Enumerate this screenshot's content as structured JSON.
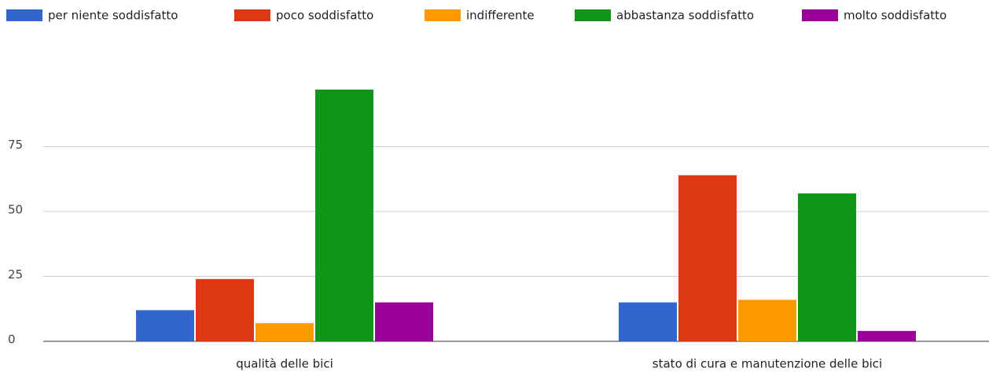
{
  "chart_data": {
    "type": "bar",
    "categories": [
      "qualità delle bici",
      "stato di cura e manutenzione delle bici"
    ],
    "series": [
      {
        "name": "per niente soddisfatto",
        "color": "#3366cc",
        "values": [
          12,
          15
        ]
      },
      {
        "name": "poco soddisfatto",
        "color": "#dc3912",
        "values": [
          24,
          64
        ]
      },
      {
        "name": "indifferente",
        "color": "#ff9900",
        "values": [
          7,
          16
        ]
      },
      {
        "name": "abbastanza soddisfatto",
        "color": "#109618",
        "values": [
          97,
          57
        ]
      },
      {
        "name": "molto soddisfatto",
        "color": "#990099",
        "values": [
          15,
          4
        ]
      }
    ],
    "ylim": [
      0,
      100
    ],
    "yticks": [
      0,
      25,
      50,
      75
    ],
    "grid": true,
    "legend": "top"
  }
}
